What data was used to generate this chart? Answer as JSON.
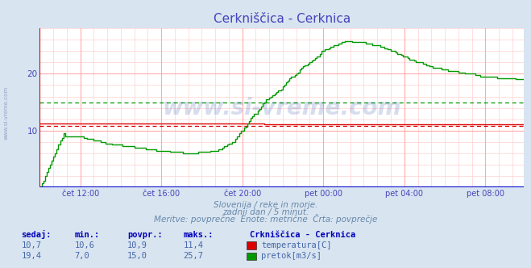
{
  "title": "Cerkniščica - Cerknica",
  "title_color": "#4444bb",
  "bg_color": "#d8e4f0",
  "plot_bg_color": "#ffffff",
  "grid_color_major": "#ffaaaa",
  "grid_color_minor": "#ffd0d0",
  "watermark": "www.si-vreme.com",
  "subtitle_lines": [
    "Slovenija / reke in morje.",
    "zadnji dan / 5 minut.",
    "Meritve: povprečne  Enote: metrične  Črta: povprečje"
  ],
  "tick_color": "#4444bb",
  "xtick_labels": [
    "čet 12:00",
    "čet 16:00",
    "čet 20:00",
    "pet 00:00",
    "pet 04:00",
    "pet 08:00"
  ],
  "xtick_positions": [
    24,
    72,
    120,
    168,
    216,
    264
  ],
  "ylim_min": 0,
  "ylim_max": 28,
  "yticks": [
    10,
    20
  ],
  "total_points": 288,
  "avg_temp": 10.9,
  "avg_flow": 15.0,
  "temp_color": "#dd0000",
  "flow_color": "#009900",
  "bottom_line_color": "#0000cc",
  "left_line_color": "#cc0000",
  "table_header_color": "#0000bb",
  "table_value_color": "#4466aa",
  "station_label": "Crkniščica - Cerknica",
  "legend": [
    {
      "color": "#dd0000",
      "label": "temperatura[C]"
    },
    {
      "color": "#009900",
      "label": "pretok[m3/s]"
    }
  ],
  "table_rows": [
    {
      "sedaj": "10,7",
      "min": "10,6",
      "povpr": "10,9",
      "maks": "11,4"
    },
    {
      "sedaj": "19,4",
      "min": "7,0",
      "povpr": "15,0",
      "maks": "25,7"
    }
  ]
}
